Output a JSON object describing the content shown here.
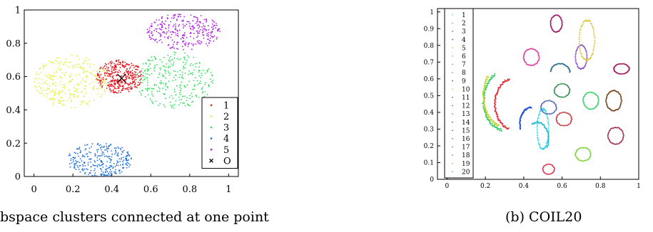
{
  "captions": {
    "left": "bspace clusters connected at one point",
    "right": "(b) COIL20"
  },
  "chart_data": [
    {
      "type": "scatter",
      "title": "",
      "xlabel": "",
      "ylabel": "",
      "xlim": [
        -0.05,
        1.05
      ],
      "ylim": [
        0,
        1
      ],
      "xticks": [
        0,
        0.2,
        0.4,
        0.6,
        0.8,
        1
      ],
      "xtick_labels": [
        "0",
        "0.2",
        "0.4",
        "0.6",
        "0.8",
        "1"
      ],
      "yticks": [
        0,
        0.2,
        0.4,
        0.6,
        0.8,
        1
      ],
      "ytick_labels": [
        "0",
        "0.2",
        "0.4",
        "0.6",
        "0.8",
        "1"
      ],
      "grid": false,
      "legend_position": "bottom-right",
      "series": [
        {
          "name": "1",
          "color": "#e8141c",
          "shape": "ellipse",
          "center": [
            0.44,
            0.6
          ],
          "spread": [
            0.12,
            0.1
          ],
          "count": 380
        },
        {
          "name": "2",
          "color": "#e6f03a",
          "shape": "ellipse",
          "center": [
            0.19,
            0.57
          ],
          "spread": [
            0.19,
            0.16
          ],
          "count": 300
        },
        {
          "name": "3",
          "color": "#30e05a",
          "shape": "ellipse",
          "center": [
            0.72,
            0.58
          ],
          "spread": [
            0.2,
            0.17
          ],
          "count": 300
        },
        {
          "name": "4",
          "color": "#1f6fe0",
          "shape": "ellipse",
          "center": [
            0.34,
            0.1
          ],
          "spread": [
            0.17,
            0.1
          ],
          "count": 300
        },
        {
          "name": "5",
          "color": "#b01ee6",
          "shape": "ellipse",
          "center": [
            0.77,
            0.87
          ],
          "spread": [
            0.19,
            0.11
          ],
          "count": 300
        },
        {
          "name": "O",
          "color": "#000000",
          "marker": "x",
          "points": [
            [
              0.45,
              0.59
            ]
          ]
        }
      ]
    },
    {
      "type": "scatter",
      "title": "",
      "xlabel": "",
      "ylabel": "",
      "xlim": [
        -0.05,
        1.0
      ],
      "ylim": [
        0,
        1.02
      ],
      "xticks": [
        0,
        0.2,
        0.4,
        0.6,
        0.8,
        1
      ],
      "xtick_labels": [
        "0",
        "0.2",
        "0.4",
        "0.6",
        "0.8",
        "1"
      ],
      "yticks": [
        0,
        0.1,
        0.2,
        0.3,
        0.4,
        0.5,
        0.6,
        0.7,
        0.8,
        0.9,
        1
      ],
      "ytick_labels": [
        "0",
        "0.1",
        "0.2",
        "0.3",
        "0.4",
        "0.5",
        "0.6",
        "0.7",
        "0.8",
        "0.9",
        "1"
      ],
      "grid": false,
      "legend_position": "left",
      "series": [
        {
          "name": "1",
          "color": "#2bd2e8",
          "shape": "ring",
          "center": [
            0.5,
            0.3
          ],
          "spread": [
            0.03,
            0.12
          ],
          "count": 60
        },
        {
          "name": "2",
          "color": "#27c95a",
          "shape": "arc",
          "center": [
            0.31,
            0.47
          ],
          "spread": [
            0.12,
            0.18
          ],
          "arc": [
            120,
            260
          ],
          "count": 80
        },
        {
          "name": "3",
          "color": "#e3202c",
          "shape": "arc",
          "center": [
            0.34,
            0.45
          ],
          "spread": [
            0.09,
            0.15
          ],
          "arc": [
            100,
            260
          ],
          "count": 70
        },
        {
          "name": "4",
          "color": "#a31f6a",
          "shape": "ring",
          "center": [
            0.57,
            0.93
          ],
          "spread": [
            0.03,
            0.05
          ],
          "count": 45
        },
        {
          "name": "5",
          "color": "#c8d430",
          "shape": "arc",
          "center": [
            0.29,
            0.5
          ],
          "spread": [
            0.1,
            0.18
          ],
          "arc": [
            140,
            260
          ],
          "count": 70
        },
        {
          "name": "6",
          "color": "#3fd46b",
          "shape": "ring",
          "center": [
            0.75,
            0.47
          ],
          "spread": [
            0.04,
            0.05
          ],
          "count": 45
        },
        {
          "name": "7",
          "color": "#e340a0",
          "shape": "ring",
          "center": [
            0.44,
            0.73
          ],
          "spread": [
            0.04,
            0.05
          ],
          "count": 45
        },
        {
          "name": "8",
          "color": "#8a52c8",
          "shape": "ring",
          "center": [
            0.7,
            0.73
          ],
          "spread": [
            0.03,
            0.07
          ],
          "count": 45
        },
        {
          "name": "9",
          "color": "#1c4bd6",
          "shape": "arc",
          "center": [
            0.44,
            0.33
          ],
          "spread": [
            0.06,
            0.1
          ],
          "arc": [
            90,
            200
          ],
          "count": 40
        },
        {
          "name": "10",
          "color": "#d8c228",
          "shape": "ring",
          "center": [
            0.73,
            0.83
          ],
          "spread": [
            0.04,
            0.12
          ],
          "count": 55
        },
        {
          "name": "11",
          "color": "#6e3a10",
          "shape": "ring",
          "center": [
            0.87,
            0.47
          ],
          "spread": [
            0.04,
            0.06
          ],
          "count": 45
        },
        {
          "name": "12",
          "color": "#1d7a3a",
          "shape": "ring",
          "center": [
            0.6,
            0.53
          ],
          "spread": [
            0.04,
            0.04
          ],
          "count": 30
        },
        {
          "name": "13",
          "color": "#3a55c0",
          "shape": "ring",
          "center": [
            0.53,
            0.43
          ],
          "spread": [
            0.04,
            0.04
          ],
          "count": 30
        },
        {
          "name": "14",
          "color": "#a3195b",
          "shape": "ring",
          "center": [
            0.91,
            0.66
          ],
          "spread": [
            0.04,
            0.03
          ],
          "count": 40
        },
        {
          "name": "15",
          "color": "#9a2e46",
          "shape": "ring",
          "center": [
            0.88,
            0.26
          ],
          "spread": [
            0.04,
            0.05
          ],
          "count": 40
        },
        {
          "name": "16",
          "color": "#c83a3a",
          "shape": "ring",
          "center": [
            0.61,
            0.36
          ],
          "spread": [
            0.04,
            0.04
          ],
          "count": 35
        },
        {
          "name": "17",
          "color": "#2e6a8e",
          "shape": "arc",
          "center": [
            0.59,
            0.64
          ],
          "spread": [
            0.05,
            0.05
          ],
          "arc": [
            0,
            180
          ],
          "count": 30
        },
        {
          "name": "18",
          "color": "#e23a58",
          "shape": "ring",
          "center": [
            0.53,
            0.06
          ],
          "spread": [
            0.03,
            0.03
          ],
          "count": 30
        },
        {
          "name": "19",
          "color": "#7ad23a",
          "shape": "ring",
          "center": [
            0.71,
            0.15
          ],
          "spread": [
            0.04,
            0.04
          ],
          "count": 35
        },
        {
          "name": "20",
          "color": "#21b8d0",
          "shape": "arc",
          "center": [
            0.47,
            0.24
          ],
          "spread": [
            0.06,
            0.1
          ],
          "arc": [
            -30,
            120
          ],
          "count": 40
        }
      ]
    }
  ]
}
